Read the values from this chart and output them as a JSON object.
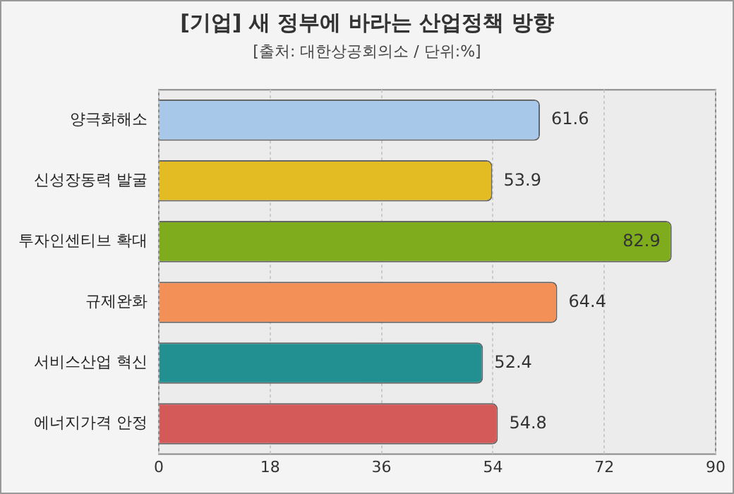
{
  "chart_data": {
    "type": "bar",
    "orientation": "horizontal",
    "title": "[기업] 새 정부에 바라는 산업정책 방향",
    "subtitle": "[출처: 대한상공회의소 / 단위:%]",
    "categories": [
      "양극화해소",
      "신성장동력 발굴",
      "투자인센티브 확대",
      "규제완화",
      "서비스산업 혁신",
      "에너지가격 안정"
    ],
    "values": [
      61.6,
      53.9,
      82.9,
      64.4,
      52.4,
      54.8
    ],
    "colors": [
      "#a8c8ea",
      "#e2bc22",
      "#7eac1c",
      "#f29058",
      "#229090",
      "#d45a5a"
    ],
    "xlim": [
      0,
      90
    ],
    "xticks": [
      0,
      18,
      36,
      54,
      72,
      90
    ],
    "grid": "x",
    "legend": false,
    "data_labels": true
  }
}
